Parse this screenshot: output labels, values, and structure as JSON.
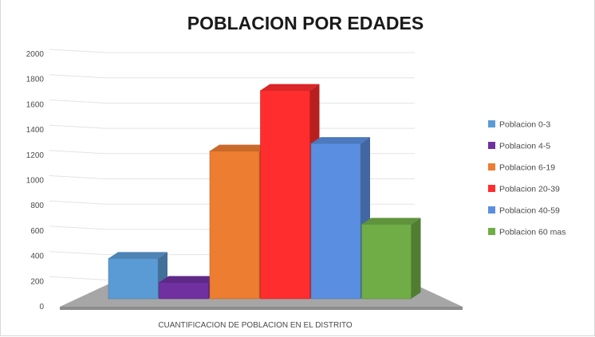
{
  "chart_data": {
    "type": "bar",
    "title": "POBLACION POR EDADES",
    "xlabel": "CUANTIFICACION DE POBLACION EN EL DISTRITO",
    "ylabel": "",
    "ylim": [
      0,
      2000
    ],
    "yticks": [
      0,
      200,
      400,
      600,
      800,
      1000,
      1200,
      1400,
      1600,
      1800,
      2000
    ],
    "grid": true,
    "legend_position": "right",
    "series": [
      {
        "name": "Poblacion 0-3",
        "value": 370,
        "color": "#5b9bd5"
      },
      {
        "name": "Poblacion 4-5",
        "value": 180,
        "color": "#7030a0"
      },
      {
        "name": "Poblacion 6-19",
        "value": 1220,
        "color": "#ed7d31"
      },
      {
        "name": "Poblacion 20-39",
        "value": 1700,
        "color": "#ff2d2d"
      },
      {
        "name": "Poblacion 40-59",
        "value": 1280,
        "color": "#5a8ee0"
      },
      {
        "name": "Poblacion 60 mas",
        "value": 640,
        "color": "#70ad47"
      }
    ]
  }
}
